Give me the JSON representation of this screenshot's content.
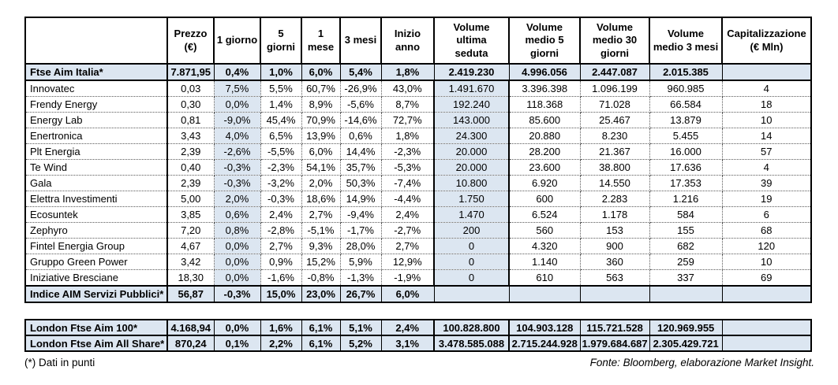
{
  "colors": {
    "shaded": "#dce6f1",
    "border": "#000000",
    "background": "#ffffff"
  },
  "table": {
    "headers": [
      "",
      "Prezzo\n(€)",
      "1 giorno",
      "5 giorni",
      "1 mese",
      "3 mesi",
      "Inizio anno",
      "Volume\nultima\nseduta",
      "Volume\nmedio 5\ngiorni",
      "Volume\nmedio 30\ngiorni",
      "Volume\nmedio 3 mesi",
      "Capitalizzazione\n(€ Mln)"
    ],
    "rows": [
      {
        "type": "index",
        "cells": [
          "Ftse Aim Italia*",
          "7.871,95",
          "0,4%",
          "1,0%",
          "6,0%",
          "5,4%",
          "1,8%",
          "2.419.230",
          "4.996.056",
          "2.447.087",
          "2.015.385",
          ""
        ]
      },
      {
        "type": "data",
        "cells": [
          "Innovatec",
          "0,03",
          "7,5%",
          "5,5%",
          "60,7%",
          "-26,9%",
          "43,0%",
          "1.491.670",
          "3.396.398",
          "1.096.199",
          "960.985",
          "4"
        ]
      },
      {
        "type": "data",
        "cells": [
          "Frendy Energy",
          "0,30",
          "0,0%",
          "1,4%",
          "8,9%",
          "-5,6%",
          "8,7%",
          "192.240",
          "118.368",
          "71.028",
          "66.584",
          "18"
        ]
      },
      {
        "type": "data",
        "cells": [
          "Energy Lab",
          "0,81",
          "-9,0%",
          "45,4%",
          "70,9%",
          "-14,6%",
          "72,7%",
          "143.000",
          "85.600",
          "25.467",
          "13.879",
          "10"
        ]
      },
      {
        "type": "data",
        "cells": [
          "Enertronica",
          "3,43",
          "4,0%",
          "6,5%",
          "13,9%",
          "0,6%",
          "1,8%",
          "24.300",
          "20.880",
          "8.230",
          "5.455",
          "14"
        ]
      },
      {
        "type": "data",
        "cells": [
          "Plt Energia",
          "2,39",
          "-2,6%",
          "-5,5%",
          "6,0%",
          "14,4%",
          "-2,3%",
          "20.000",
          "28.200",
          "21.367",
          "16.000",
          "57"
        ]
      },
      {
        "type": "data",
        "cells": [
          "Te Wind",
          "0,40",
          "-0,3%",
          "-2,3%",
          "54,1%",
          "35,7%",
          "-5,3%",
          "20.000",
          "23.600",
          "38.800",
          "17.636",
          "4"
        ]
      },
      {
        "type": "data",
        "cells": [
          "Gala",
          "2,39",
          "-0,3%",
          "-3,2%",
          "2,0%",
          "50,3%",
          "-7,4%",
          "10.800",
          "6.920",
          "14.550",
          "17.353",
          "39"
        ]
      },
      {
        "type": "data",
        "cells": [
          "Elettra Investimenti",
          "5,00",
          "2,0%",
          "-0,3%",
          "18,6%",
          "14,9%",
          "-4,4%",
          "1.750",
          "600",
          "2.283",
          "1.216",
          "19"
        ]
      },
      {
        "type": "data",
        "cells": [
          "Ecosuntek",
          "3,85",
          "0,6%",
          "2,4%",
          "2,7%",
          "-9,4%",
          "2,4%",
          "1.470",
          "6.524",
          "1.178",
          "584",
          "6"
        ]
      },
      {
        "type": "data",
        "cells": [
          "Zephyro",
          "7,20",
          "0,8%",
          "-2,8%",
          "-5,1%",
          "-1,7%",
          "-2,7%",
          "200",
          "560",
          "153",
          "155",
          "68"
        ]
      },
      {
        "type": "data",
        "cells": [
          "Fintel Energia Group",
          "4,67",
          "0,0%",
          "2,7%",
          "9,3%",
          "28,0%",
          "2,7%",
          "0",
          "4.320",
          "900",
          "682",
          "120"
        ]
      },
      {
        "type": "data",
        "cells": [
          "Gruppo Green Power",
          "3,42",
          "0,0%",
          "0,9%",
          "15,2%",
          "5,9%",
          "12,9%",
          "0",
          "1.140",
          "360",
          "259",
          "10"
        ]
      },
      {
        "type": "data",
        "cells": [
          "Iniziative Bresciane",
          "18,30",
          "0,0%",
          "-1,6%",
          "-0,8%",
          "-1,3%",
          "-1,9%",
          "0",
          "610",
          "563",
          "337",
          "69"
        ]
      },
      {
        "type": "index",
        "cells": [
          "Indice AIM Servizi Pubblici*",
          "56,87",
          "-0,3%",
          "15,0%",
          "23,0%",
          "26,7%",
          "6,0%",
          "",
          "",
          "",
          "",
          ""
        ]
      }
    ]
  },
  "london_table": {
    "rows": [
      {
        "cells": [
          "London Ftse Aim 100*",
          "4.168,94",
          "0,0%",
          "1,6%",
          "6,1%",
          "5,1%",
          "2,4%",
          "100.828.800",
          "104.903.128",
          "115.721.528",
          "120.969.955",
          ""
        ]
      },
      {
        "cells": [
          "London Ftse Aim All Share*",
          "870,24",
          "0,1%",
          "2,2%",
          "6,1%",
          "5,2%",
          "3,1%",
          "3.478.585.088",
          "2.715.244.928",
          "1.979.684.687",
          "2.305.429.721",
          ""
        ]
      }
    ]
  },
  "footnote": "(*) Dati in punti",
  "source": "Fonte: Bloomberg, elaborazione Market Insight."
}
